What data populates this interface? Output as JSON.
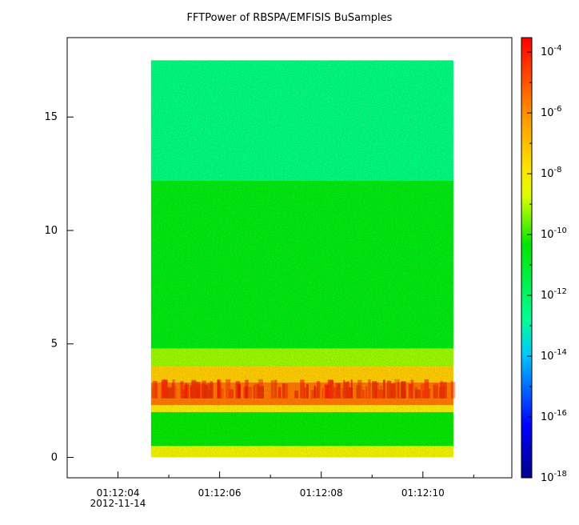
{
  "chart_data": {
    "type": "heatmap",
    "title": "FFTPower of RBSPA/EMFISIS  BuSamples",
    "xlabel": "",
    "ylabel": "",
    "x_ticks": [
      {
        "value": "01:12:04",
        "t": 4
      },
      {
        "value": "01:12:06",
        "t": 6
      },
      {
        "value": "01:12:08",
        "t": 8
      },
      {
        "value": "01:12:10",
        "t": 10
      }
    ],
    "x_minor_ticks": [
      5,
      7,
      9,
      11
    ],
    "x_date_label": "2012-11-14",
    "xlim_seconds_past_01_12": [
      3.0,
      11.75
    ],
    "data_time_range_seconds_past_01_12": [
      4.65,
      10.6
    ],
    "ylim": [
      -0.9,
      18.5
    ],
    "y_ticks": [
      0,
      5,
      10,
      15
    ],
    "data_y_range": [
      0,
      17.5
    ],
    "colorbar": {
      "scale": "log",
      "range": [
        1e-18,
        0.0003
      ],
      "ticks": [
        {
          "value": 1e-18,
          "exp": "-18"
        },
        {
          "value": 1e-16,
          "exp": "-16"
        },
        {
          "value": 1e-14,
          "exp": "-14"
        },
        {
          "value": 1e-12,
          "exp": "-12"
        },
        {
          "value": 1e-10,
          "exp": "-10"
        },
        {
          "value": 1e-08,
          "exp": "-8"
        },
        {
          "value": 1e-06,
          "exp": "-6"
        },
        {
          "value": 0.0001,
          "exp": "-4"
        }
      ],
      "colormap": "rainbow (dark blue to red)"
    },
    "bands": [
      {
        "y_range": [
          0.0,
          0.5
        ],
        "log10_power": -8.3
      },
      {
        "y_range": [
          0.5,
          2.0
        ],
        "log10_power": -10.3
      },
      {
        "y_range": [
          2.0,
          2.3
        ],
        "log10_power": -8.0
      },
      {
        "y_range": [
          2.3,
          3.3
        ],
        "log10_power": -5.6
      },
      {
        "y_range": [
          3.3,
          4.0
        ],
        "log10_power": -7.3
      },
      {
        "y_range": [
          4.0,
          4.8
        ],
        "log10_power": -9.2
      },
      {
        "y_range": [
          4.8,
          12.2
        ],
        "log10_power": -10.6
      },
      {
        "y_range": [
          12.2,
          17.5
        ],
        "log10_power": -12.4
      }
    ]
  }
}
